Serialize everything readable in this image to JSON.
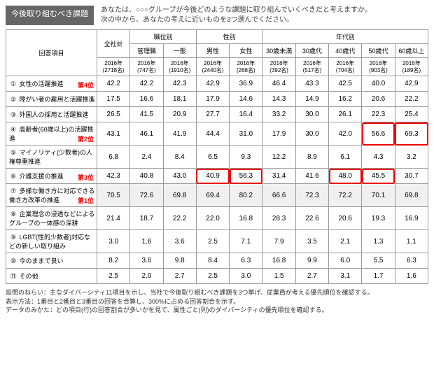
{
  "title": "今後取り組むべき課題",
  "description": "あなたは、○○○グループが今後どのような課題に取り組んでいくべきだと考えますか。\n次の中から、あなたの考えに近いものを3つ選んでください。",
  "column_groups": {
    "item_header": "回答項目",
    "total": "全社計",
    "job": {
      "label": "職位別",
      "cols": [
        "管理職",
        "一般"
      ]
    },
    "sex": {
      "label": "性別",
      "cols": [
        "男性",
        "女性"
      ]
    },
    "age": {
      "label": "年代別",
      "cols": [
        "30歳未満",
        "30歳代",
        "40歳代",
        "50歳代",
        "60歳以上"
      ]
    }
  },
  "year_row": [
    "2016年",
    "2016年",
    "2016年",
    "2016年",
    "2016年",
    "2016年",
    "2016年",
    "2016年",
    "2016年",
    "2016年"
  ],
  "n_row": [
    "(2718名)",
    "(747名)",
    "(1910名)",
    "(2440名)",
    "(268名)",
    "(392名)",
    "(517名)",
    "(704名)",
    "(903名)",
    "(189名)"
  ],
  "rows": [
    {
      "num": "①",
      "label": "女性の活躍推進",
      "rank": "第4位",
      "vals": [
        "42.2",
        "42.2",
        "42.3",
        "42.9",
        "36.9",
        "46.4",
        "43.3",
        "42.5",
        "40.0",
        "42.9"
      ]
    },
    {
      "num": "②",
      "label": "障がい者の雇用と活躍推進",
      "vals": [
        "17.5",
        "16.6",
        "18.1",
        "17.9",
        "14.6",
        "14.3",
        "14.9",
        "16.2",
        "20.6",
        "22.2"
      ]
    },
    {
      "num": "③",
      "label": "外国人の採用と活躍推進",
      "vals": [
        "26.5",
        "41.5",
        "20.9",
        "27.7",
        "16.4",
        "33.2",
        "30.0",
        "26.1",
        "22.3",
        "25.4"
      ]
    },
    {
      "num": "④",
      "label": "高齢者(60歳以上)の活躍推進",
      "rank": "第2位",
      "vals": [
        "43.1",
        "46.1",
        "41.9",
        "44.4",
        "31.0",
        "17.9",
        "30.0",
        "42.0",
        "56.6",
        "69.3"
      ],
      "hl": [
        8,
        9
      ]
    },
    {
      "num": "⑤",
      "label": "マイノリティ(少数者)の人権尊重推進",
      "vals": [
        "6.8",
        "2.4",
        "8.4",
        "6.5",
        "9.3",
        "12.2",
        "8.9",
        "6.1",
        "4.3",
        "3.2"
      ]
    },
    {
      "num": "⑥",
      "label": "介護支援の推進",
      "rank": "第3位",
      "vals": [
        "42.3",
        "40.8",
        "43.0",
        "40.9",
        "56.3",
        "31.4",
        "41.6",
        "48.0",
        "45.5",
        "30.7"
      ],
      "hl": [
        3,
        4,
        7,
        8
      ]
    },
    {
      "num": "⑦",
      "label": "多様な働き方に対応できる働き方改革の推進",
      "rank": "第1位",
      "vals": [
        "70.5",
        "72.6",
        "69.8",
        "69.4",
        "80.2",
        "66.6",
        "72.3",
        "72.2",
        "70.1",
        "69.8"
      ],
      "hlrow": true
    },
    {
      "num": "⑧",
      "label": "企業理念の浸透などによるグループの一体感の深耕",
      "vals": [
        "21.4",
        "18.7",
        "22.2",
        "22.0",
        "16.8",
        "28.3",
        "22.6",
        "20.6",
        "19.3",
        "16.9"
      ]
    },
    {
      "num": "⑨",
      "label": "LGBT(性的少数者)対応などの新しい取り組み",
      "vals": [
        "3.0",
        "1.6",
        "3.6",
        "2.5",
        "7.1",
        "7.9",
        "3.5",
        "2.1",
        "1.3",
        "1.1"
      ]
    },
    {
      "num": "⑩",
      "label": "今のままで良い",
      "vals": [
        "8.2",
        "3.6",
        "9.8",
        "8.4",
        "6.3",
        "16.8",
        "9.9",
        "6.0",
        "5.5",
        "6.3"
      ]
    },
    {
      "num": "⑪",
      "label": "その他",
      "vals": [
        "2.5",
        "2.0",
        "2.7",
        "2.5",
        "3.0",
        "1.5",
        "2.7",
        "3.1",
        "1.7",
        "1.6"
      ]
    }
  ],
  "footer": [
    "設問のねらい：主なダイバーシティ11項目を示し、当社で今後取り組むべき課題を3つ挙げ、従業員が考える優先順位を確認する。",
    "表示方法：1番目と2番目と3番目の回答を合算し、300%に占める回答割合を示す。",
    "データのみかた：どの項目(行)の回答割合が多いかを見て、属性ごと(列)のダイバーシティの優先順位を確認する。"
  ]
}
